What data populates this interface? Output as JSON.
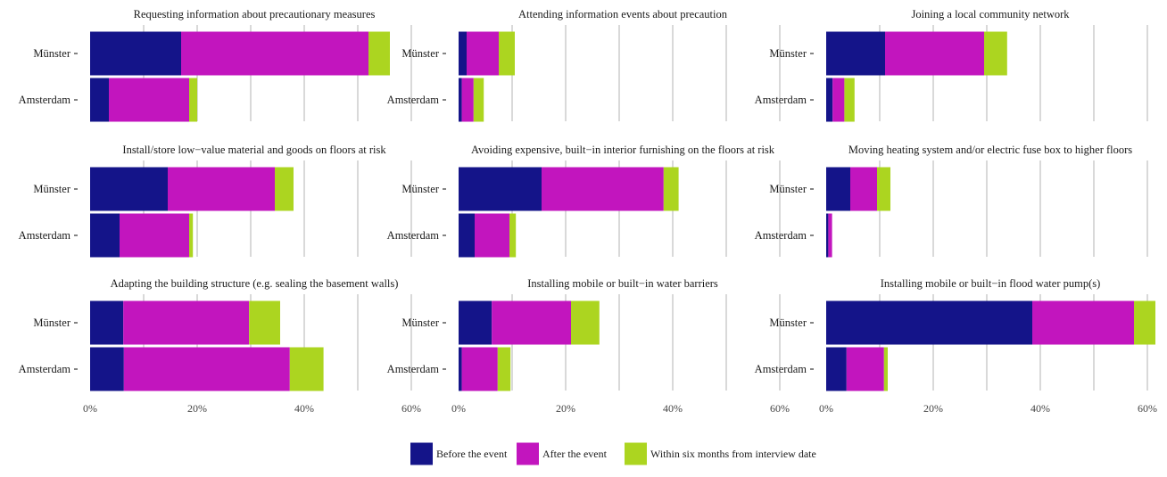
{
  "chart_data": {
    "type": "bar",
    "orientation": "horizontal",
    "stacked": true,
    "categories": [
      "Münster",
      "Amsterdam"
    ],
    "xlim": [
      0,
      0.6
    ],
    "x_ticks": [
      0,
      0.2,
      0.4,
      0.6
    ],
    "x_tick_labels": [
      "0%",
      "20%",
      "40%",
      "60%"
    ],
    "grid": true,
    "legend_position": "bottom",
    "series": [
      {
        "key": "before",
        "name": "Before the event",
        "color": "#141489"
      },
      {
        "key": "after",
        "name": "After the event",
        "color": "#c215be"
      },
      {
        "key": "within",
        "name": "Within six months from interview date",
        "color": "#acd520"
      }
    ],
    "panels": [
      {
        "title": "Requesting information about precautionary measures",
        "values": {
          "Münster": [
            0.17,
            0.35,
            0.04
          ],
          "Amsterdam": [
            0.035,
            0.15,
            0.015
          ]
        }
      },
      {
        "title": "Attending information events about precaution",
        "values": {
          "Münster": [
            0.015,
            0.06,
            0.03
          ],
          "Amsterdam": [
            0.006,
            0.022,
            0.019
          ]
        }
      },
      {
        "title": "Joining a local community network",
        "values": {
          "Münster": [
            0.11,
            0.185,
            0.043
          ],
          "Amsterdam": [
            0.012,
            0.022,
            0.019
          ]
        }
      },
      {
        "title": "Install/store low−value material and goods on floors at risk",
        "values": {
          "Münster": [
            0.145,
            0.2,
            0.035
          ],
          "Amsterdam": [
            0.055,
            0.13,
            0.007
          ]
        }
      },
      {
        "title": "Avoiding expensive, built−in interior furnishing on the floors at risk",
        "values": {
          "Münster": [
            0.155,
            0.228,
            0.028
          ],
          "Amsterdam": [
            0.03,
            0.065,
            0.012
          ]
        }
      },
      {
        "title": "Moving heating system and/or electric fuse box to higher floors",
        "values": {
          "Münster": [
            0.045,
            0.05,
            0.025
          ],
          "Amsterdam": [
            0.004,
            0.007,
            0.0
          ]
        }
      },
      {
        "title": "Adapting the building structure (e.g. sealing the basement walls)",
        "values": {
          "Münster": [
            0.062,
            0.235,
            0.058
          ],
          "Amsterdam": [
            0.063,
            0.31,
            0.063
          ]
        }
      },
      {
        "title": "Installing mobile or built−in water barriers",
        "values": {
          "Münster": [
            0.062,
            0.148,
            0.053
          ],
          "Amsterdam": [
            0.006,
            0.067,
            0.024
          ]
        }
      },
      {
        "title": "Installing mobile or built−in flood water pump(s)",
        "values": {
          "Münster": [
            0.385,
            0.19,
            0.04
          ],
          "Amsterdam": [
            0.038,
            0.07,
            0.007
          ]
        }
      }
    ]
  }
}
